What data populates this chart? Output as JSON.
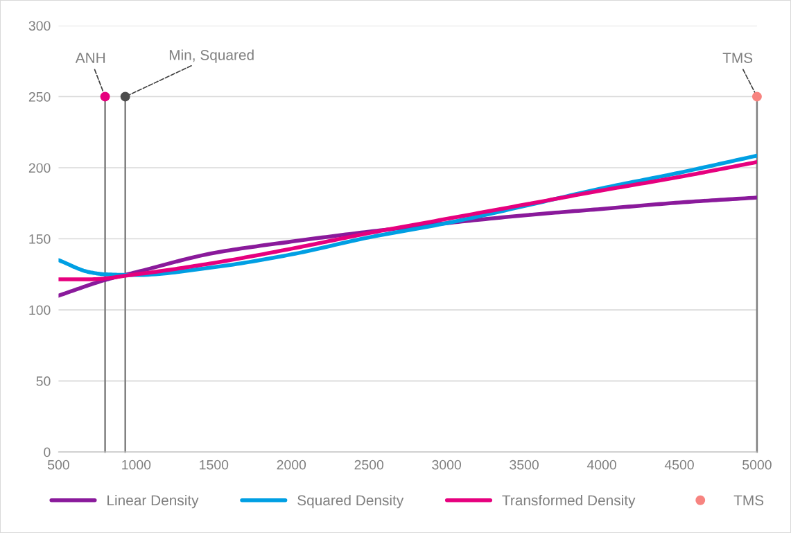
{
  "chart_data": {
    "type": "line",
    "xlim": [
      500,
      5000
    ],
    "xticks": [
      500,
      1000,
      1500,
      2000,
      2500,
      3000,
      3500,
      4000,
      4500,
      5000
    ],
    "ylim": [
      0,
      300
    ],
    "yticks": [
      0,
      50,
      100,
      150,
      200,
      250,
      300
    ],
    "grid": "y",
    "legend": "bottom",
    "marker": "none",
    "line_style": "solid",
    "annotations": [
      {
        "text": "ANH",
        "x": 800,
        "y": 250
      },
      {
        "text": "Min, Squared",
        "x": 930,
        "y": 250
      },
      {
        "text": "TMS",
        "x": 5000,
        "y": 250
      }
    ],
    "series": [
      {
        "name": "Linear Density",
        "color": "#8a1a9b",
        "x": [
          500,
          800,
          1000,
          1500,
          2000,
          2500,
          3000,
          3500,
          4000,
          4500,
          5000
        ],
        "values": [
          110,
          121,
          126.5,
          140,
          148,
          155,
          161,
          166.5,
          171,
          175.5,
          179
        ]
      },
      {
        "name": "Squared Density",
        "color": "#009fe3",
        "x": [
          500,
          700,
          800,
          1000,
          1500,
          2000,
          2500,
          3000,
          3500,
          4000,
          4500,
          5000
        ],
        "values": [
          135,
          126.5,
          125,
          124.5,
          130,
          139,
          151,
          161,
          173,
          185.5,
          196.5,
          208.5
        ]
      },
      {
        "name": "Transformed Density",
        "color": "#e6007e",
        "x": [
          500,
          700,
          1000,
          1500,
          2000,
          2500,
          3000,
          3500,
          4000,
          4500,
          5000
        ],
        "values": [
          121.5,
          121.5,
          125,
          133,
          143,
          154,
          164,
          174,
          184,
          193.5,
          204
        ]
      },
      {
        "type": "lollipop",
        "marker": "circle",
        "color": "#e6007e",
        "x": [
          800
        ],
        "values": [
          250
        ]
      },
      {
        "type": "lollipop",
        "marker": "circle",
        "color": "#4d4d4d",
        "x": [
          930
        ],
        "values": [
          250
        ]
      },
      {
        "name": "TMS",
        "type": "lollipop",
        "marker": "circle",
        "color": "#f78480",
        "x": [
          5000
        ],
        "values": [
          250
        ]
      }
    ]
  }
}
